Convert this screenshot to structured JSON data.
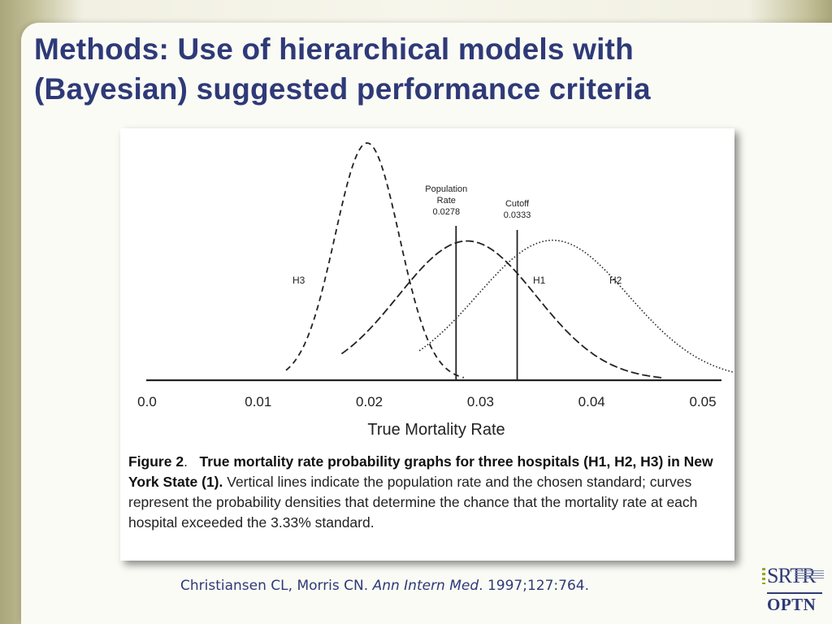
{
  "slide": {
    "title_line1": "Methods: Use of hierarchical models with",
    "title_line2": "(Bayesian) suggested performance criteria",
    "citation_authors": "Christiansen CL, Morris CN. ",
    "citation_journal": "Ann Intern Med",
    "citation_rest": ". 1997;127:764.",
    "colors": {
      "title": "#2e3a78",
      "citation": "#2e3a78",
      "logo_accent": "#8cab2a"
    }
  },
  "figure": {
    "caption_label": "Figure 2",
    "caption_label_punct": ".",
    "caption_bold": "True mortality rate probability graphs for three hospitals (H1, H2, H3) in New York State (1).",
    "caption_text": " Vertical lines indicate the population rate and the chosen standard; curves represent the probability densities that determine the chance that the mortality rate at each hospital exceeded the 3.33% standard."
  },
  "chart_data": {
    "type": "line",
    "title": "",
    "xlabel": "True Mortality Rate",
    "ylabel": "",
    "xlim": [
      0.0,
      0.05
    ],
    "x_ticks": [
      "0.0",
      "0.01",
      "0.02",
      "0.03",
      "0.04",
      "0.05"
    ],
    "grid": false,
    "series": [
      {
        "name": "H3",
        "style": "dashed",
        "mean": 0.0198,
        "sd": 0.0029,
        "peak": 1.0,
        "x_range": [
          0.0125,
          0.0285
        ]
      },
      {
        "name": "H1",
        "style": "long-dash",
        "mean": 0.0288,
        "sd": 0.0062,
        "peak": 0.587,
        "x_range": [
          0.0175,
          0.0465
        ]
      },
      {
        "name": "H2",
        "style": "dotted",
        "mean": 0.0365,
        "sd": 0.0068,
        "peak": 0.59,
        "x_range": [
          0.0245,
          0.0535
        ]
      }
    ],
    "vertical_lines": [
      {
        "label_line1": "Population",
        "label_line2": "Rate",
        "label_value": "0.0278",
        "x": 0.0278
      },
      {
        "label_line1": "Cutoff",
        "label_line2": "",
        "label_value": "0.0333",
        "x": 0.0333
      }
    ],
    "annotations": {
      "h3": "H3",
      "h1": "H1",
      "h2": "H2"
    }
  },
  "logo": {
    "top": "SRTR",
    "bottom": "OPTN"
  }
}
